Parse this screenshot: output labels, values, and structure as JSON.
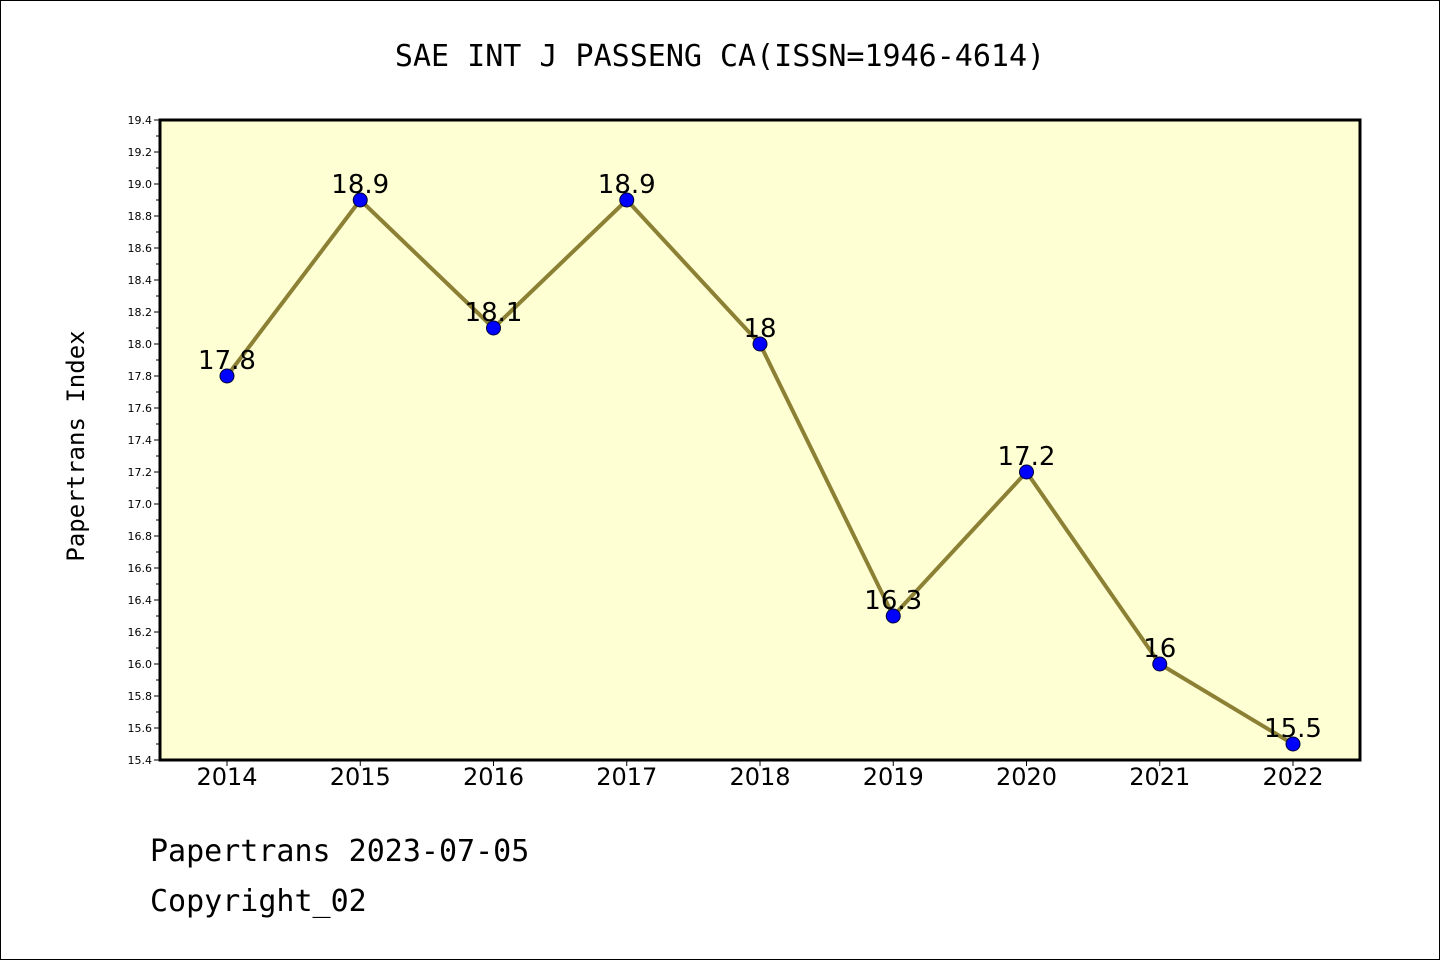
{
  "chart_data": {
    "type": "line",
    "title": "SAE INT J PASSENG CA(ISSN=1946-4614)",
    "xlabel": "",
    "ylabel": "Papertrans Index",
    "categories": [
      "2014",
      "2015",
      "2016",
      "2017",
      "2018",
      "2019",
      "2020",
      "2021",
      "2022"
    ],
    "series": [
      {
        "values": [
          17.8,
          18.9,
          18.1,
          18.9,
          18.0,
          16.3,
          17.2,
          16.0,
          15.5
        ],
        "labels": [
          "17.8",
          "18.9",
          "18.1",
          "18.9",
          "18",
          "16.3",
          "17.2",
          "16",
          "15.5"
        ]
      }
    ],
    "ylim": [
      15.4,
      19.4
    ],
    "yticks": [
      "15.4",
      "15.6",
      "15.8",
      "16.0",
      "16.2",
      "16.4",
      "16.6",
      "16.8",
      "17.0",
      "17.2",
      "17.4",
      "17.6",
      "17.8",
      "18.0",
      "18.2",
      "18.4",
      "18.6",
      "18.8",
      "19.0",
      "19.2",
      "19.4"
    ],
    "grid": false,
    "legend": "none",
    "colors": {
      "plot_background": "#ffffd4",
      "line": "#8b8034",
      "marker": "#0000ff"
    }
  },
  "footer": {
    "line1": "Papertrans 2023-07-05",
    "line2": "Copyright_02"
  }
}
